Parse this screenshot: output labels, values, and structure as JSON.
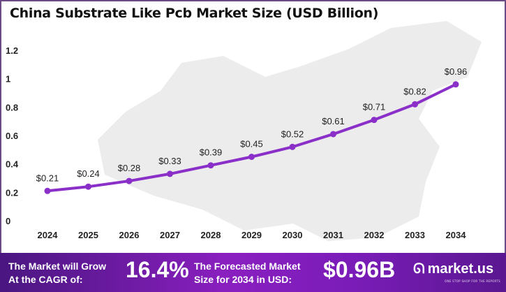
{
  "chart_data": {
    "type": "line",
    "title": "China Substrate  Like Pcb Market Size (USD Billion)",
    "categories": [
      "2024",
      "2025",
      "2026",
      "2027",
      "2028",
      "2029",
      "2030",
      "2031",
      "2032",
      "2033",
      "2034"
    ],
    "values": [
      0.21,
      0.24,
      0.28,
      0.33,
      0.39,
      0.45,
      0.52,
      0.61,
      0.71,
      0.82,
      0.96
    ],
    "data_labels": [
      "$0.21",
      "$0.24",
      "$0.28",
      "$0.33",
      "$0.39",
      "$0.45",
      "$0.52",
      "$0.61",
      "$0.71",
      "$0.82",
      "$0.96"
    ],
    "yticks": [
      "0",
      "0.2",
      "0.4",
      "0.6",
      "0.8",
      "1",
      "1.2"
    ],
    "ylim": [
      0,
      1.2
    ],
    "grid": false,
    "line_color": "#8b2fc9"
  },
  "footer": {
    "cagr_text_line1": "The Market will Grow",
    "cagr_text_line2": "At the CAGR of:",
    "cagr_value": "16.4%",
    "forecast_line1": "The Forecasted Market",
    "forecast_line2": "Size for 2034 in USD:",
    "forecast_value": "$0.96B",
    "brand": "market.us",
    "brand_tagline": "ONE STOP SHOP FOR THE REPORTS"
  }
}
